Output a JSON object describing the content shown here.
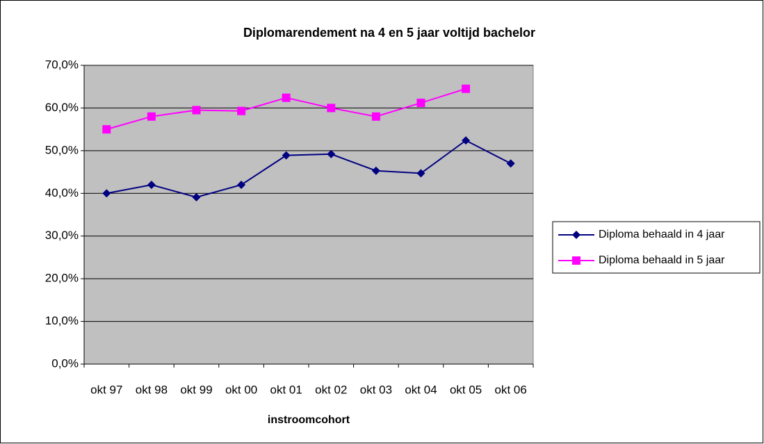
{
  "chart_data": {
    "type": "line",
    "title": "Diplomarendement na 4 en 5 jaar voltijd bachelor",
    "x_label": "instroomcohort",
    "categories": [
      "okt 97",
      "okt 98",
      "okt 99",
      "okt 00",
      "okt 01",
      "okt 02",
      "okt 03",
      "okt 04",
      "okt 05",
      "okt 06"
    ],
    "series": [
      {
        "name": "Diploma behaald in 4 jaar",
        "color": "#000080",
        "marker": "diamond",
        "values": [
          40.0,
          42.0,
          39.1,
          42.0,
          48.9,
          49.2,
          45.3,
          44.7,
          52.4,
          47.0
        ]
      },
      {
        "name": "Diploma behaald in 5 jaar",
        "color": "#ff00ff",
        "marker": "square",
        "values": [
          55.0,
          58.0,
          59.5,
          59.3,
          62.4,
          60.0,
          58.0,
          61.2,
          64.5,
          null
        ]
      }
    ],
    "ylim": [
      0,
      70
    ],
    "yticks": [
      {
        "value": 0,
        "label": "0,0%"
      },
      {
        "value": 10,
        "label": "10,0%"
      },
      {
        "value": 20,
        "label": "20,0%"
      },
      {
        "value": 30,
        "label": "30,0%"
      },
      {
        "value": 40,
        "label": "40,0%"
      },
      {
        "value": 50,
        "label": "50,0%"
      },
      {
        "value": 60,
        "label": "60,0%"
      },
      {
        "value": 70,
        "label": "70,0%"
      }
    ],
    "grid": true,
    "legend": "right",
    "plot_background": "#c0c0c0"
  }
}
